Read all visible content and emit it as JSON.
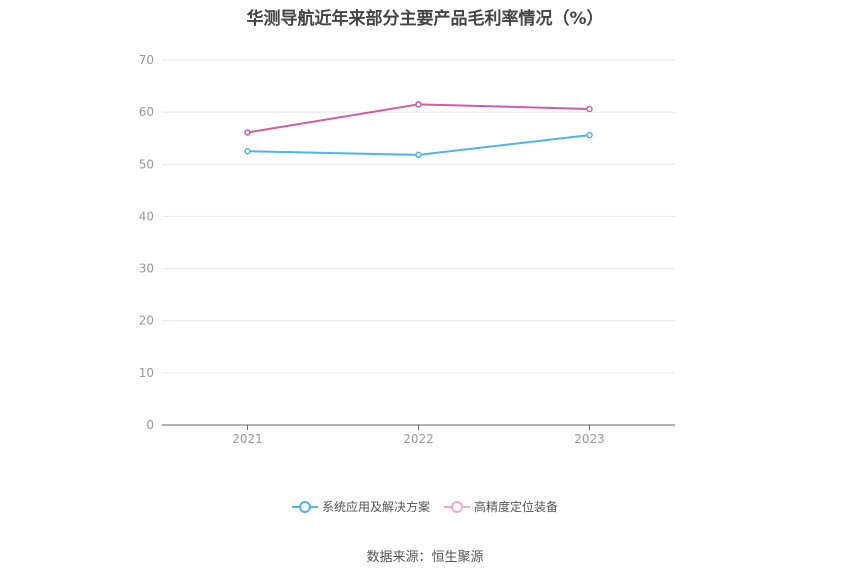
{
  "chart_data": {
    "type": "line",
    "title": "华测导航近年来部分主要产品毛利率情况（%）",
    "categories": [
      "2021",
      "2022",
      "2023"
    ],
    "series": [
      {
        "name": "系统应用及解决方案",
        "color": "#4fb5e6",
        "values": [
          52.5,
          51.8,
          55.6
        ]
      },
      {
        "name": "高精度定位装备",
        "color": "#d05ca6",
        "values": [
          56.1,
          61.5,
          60.6
        ]
      }
    ],
    "ylim": [
      0,
      70
    ],
    "yticks": [
      0,
      10,
      20,
      30,
      40,
      50,
      60,
      70
    ],
    "grid": true,
    "legend_position": "bottom"
  },
  "source": "数据来源：恒生聚源"
}
